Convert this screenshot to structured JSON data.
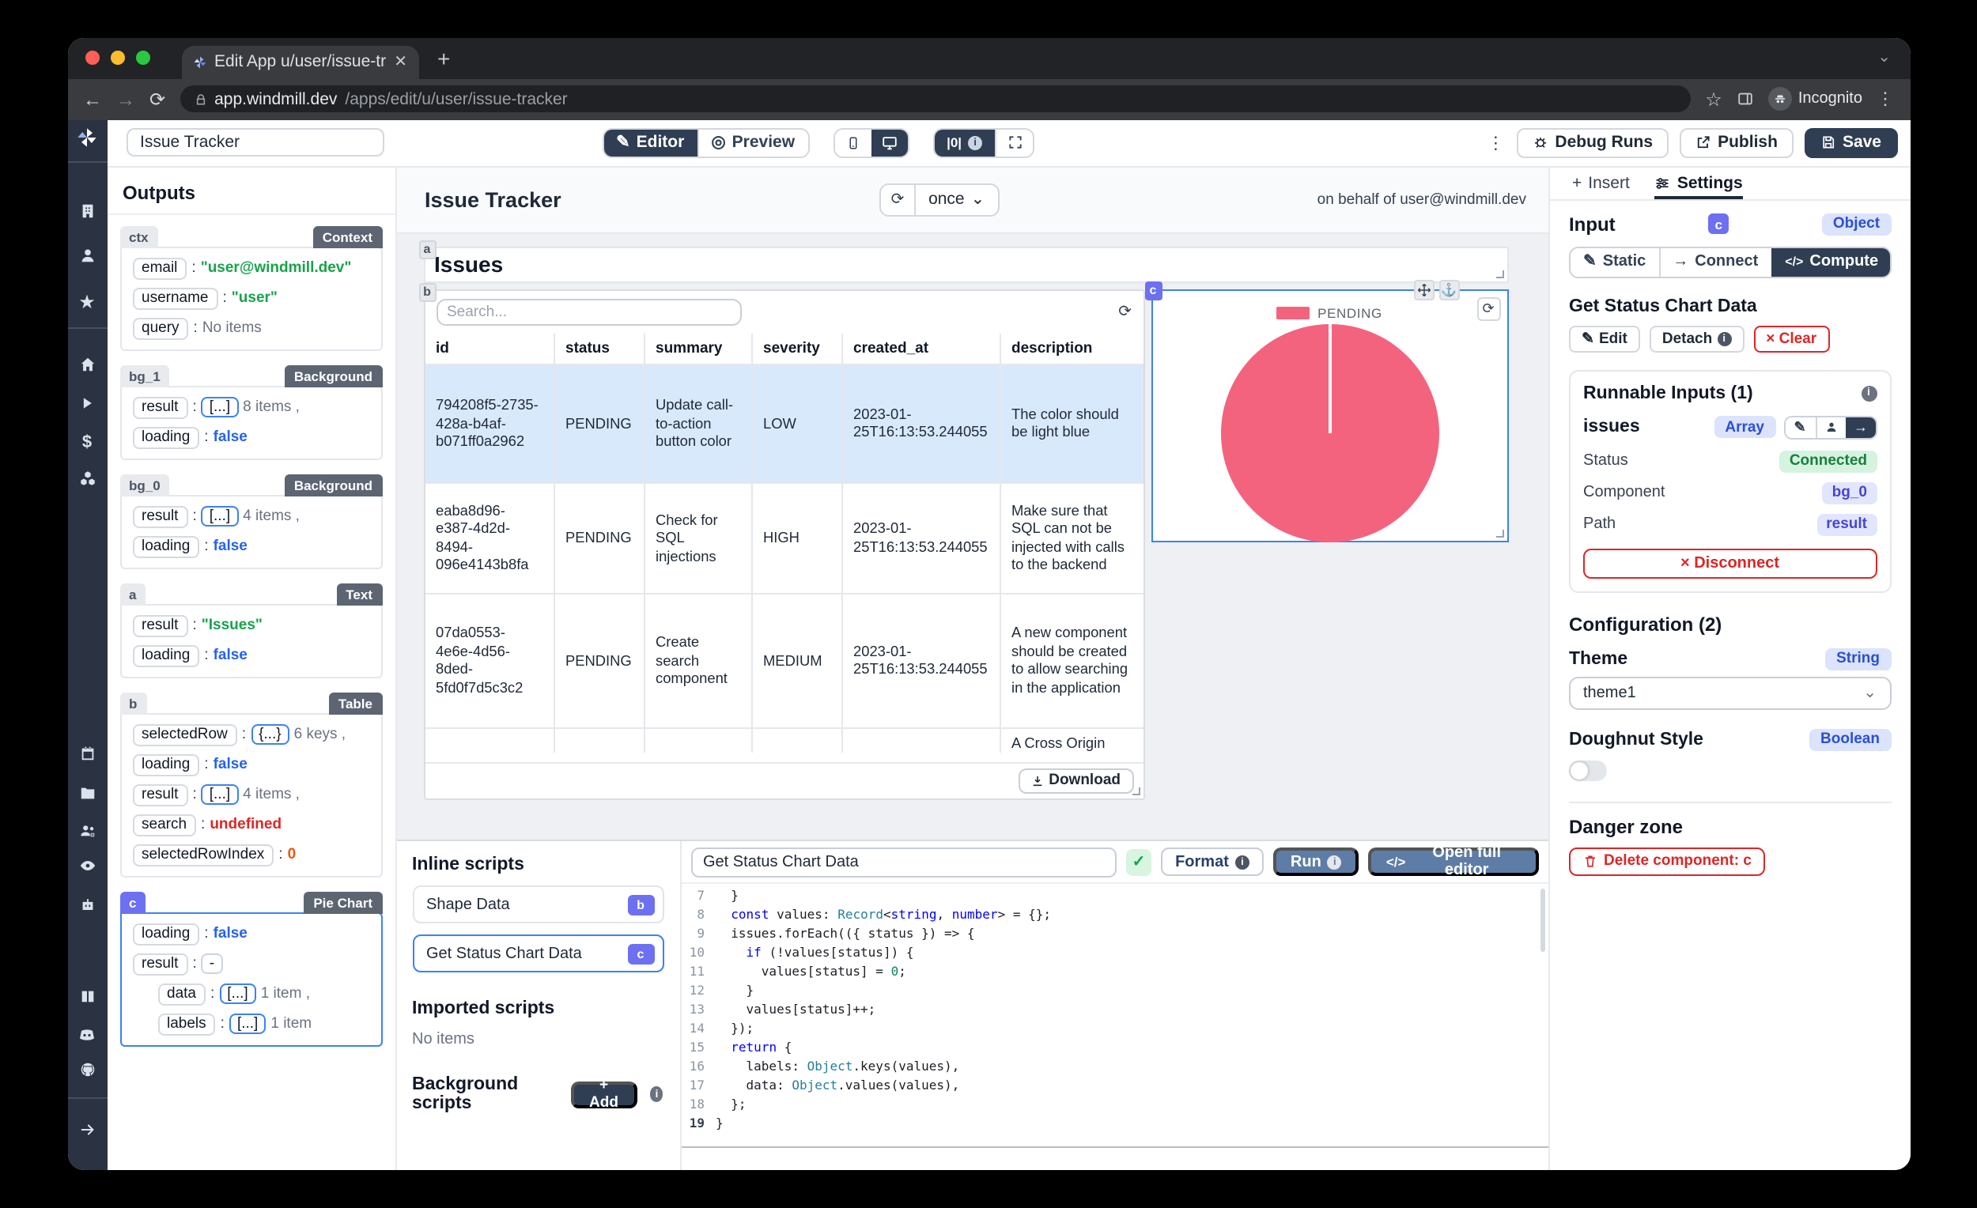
{
  "browser": {
    "tab_title": "Edit App u/user/issue-tracker |",
    "url_domain": "app.windmill.dev",
    "url_path": "/apps/edit/u/user/issue-tracker",
    "incognito_label": "Incognito"
  },
  "icons": {
    "back": "←",
    "forward": "→",
    "refresh": "⟳",
    "close": "✕",
    "plus": "+",
    "chevron_down": "⌄",
    "kebab": "⋮",
    "star": "☆",
    "check": "✓",
    "pencil": "✎",
    "preview": "◎",
    "anchor": "⚓",
    "arrow_right": "→",
    "code": "</>",
    "zero_badge": "|0|",
    "dash": "-",
    "colon": ":"
  },
  "toolbar": {
    "app_name_value": "Issue Tracker",
    "editor": "Editor",
    "preview": "Preview",
    "debug_runs": "Debug Runs",
    "publish": "Publish",
    "save": "Save"
  },
  "outputs": {
    "title": "Outputs",
    "cards": [
      {
        "id": "ctx",
        "type": "Context",
        "purple": false,
        "selected": false,
        "rows": [
          {
            "key": "email",
            "value": "\"user@windmill.dev\"",
            "cls": "str"
          },
          {
            "key": "username",
            "value": "\"user\"",
            "cls": "str"
          },
          {
            "key": "query",
            "value": "No items",
            "cls": "mut"
          }
        ]
      },
      {
        "id": "bg_1",
        "type": "Background",
        "purple": false,
        "selected": false,
        "rows": [
          {
            "key": "result",
            "chip": "[...]",
            "chipBlue": true,
            "value": "8 items ,",
            "cls": "mut"
          },
          {
            "key": "loading",
            "value": "false",
            "cls": "bool"
          }
        ]
      },
      {
        "id": "bg_0",
        "type": "Background",
        "purple": false,
        "selected": false,
        "rows": [
          {
            "key": "result",
            "chip": "[...]",
            "chipBlue": true,
            "value": "4 items ,",
            "cls": "mut"
          },
          {
            "key": "loading",
            "value": "false",
            "cls": "bool"
          }
        ]
      },
      {
        "id": "a",
        "type": "Text",
        "purple": false,
        "selected": false,
        "rows": [
          {
            "key": "result",
            "value": "\"Issues\"",
            "cls": "str"
          },
          {
            "key": "loading",
            "value": "false",
            "cls": "bool"
          }
        ]
      },
      {
        "id": "b",
        "type": "Table",
        "purple": false,
        "selected": false,
        "rows": [
          {
            "key": "selectedRow",
            "chip": "{...}",
            "chipBlue": true,
            "value": "6 keys ,",
            "cls": "mut"
          },
          {
            "key": "loading",
            "value": "false",
            "cls": "bool"
          },
          {
            "key": "result",
            "chip": "[...]",
            "chipBlue": true,
            "value": "4 items ,",
            "cls": "mut"
          },
          {
            "key": "search",
            "value": "undefined",
            "cls": "undef"
          },
          {
            "key": "selectedRowIndex",
            "value": "0",
            "cls": "num"
          }
        ]
      },
      {
        "id": "c",
        "type": "Pie Chart",
        "purple": true,
        "selected": true,
        "rows": [
          {
            "key": "loading",
            "value": "false",
            "cls": "bool"
          },
          {
            "key": "result",
            "chip": "-",
            "chipBlue": false,
            "value": "",
            "cls": "mut"
          },
          {
            "key": "data",
            "chip": "[...]",
            "chipBlue": true,
            "value": "1 item ,",
            "cls": "mut",
            "ind": true
          },
          {
            "key": "labels",
            "chip": "[...]",
            "chipBlue": true,
            "value": "1 item",
            "cls": "mut",
            "ind": true
          }
        ]
      }
    ]
  },
  "canvas": {
    "title": "Issue Tracker",
    "schedule": "once",
    "on_behalf": "on behalf of user@windmill.dev",
    "issues_heading": "Issues",
    "issues_badge": "a",
    "table_badge": "b",
    "pie_badge": "c",
    "table": {
      "search_placeholder": "Search...",
      "columns": [
        "id",
        "status",
        "summary",
        "severity",
        "created_at",
        "description"
      ],
      "rows": [
        {
          "selected": true,
          "cells": [
            "794208f5-2735-428a-b4af-b071ff0a2962",
            "PENDING",
            "Update call-to-action button color",
            "LOW",
            "2023-01-25T16:13:53.244055",
            "The color should be light blue"
          ]
        },
        {
          "selected": false,
          "cells": [
            "eaba8d96-e387-4d2d-8494-096e4143b8fa",
            "PENDING",
            "Check for SQL injections",
            "HIGH",
            "2023-01-25T16:13:53.244055",
            "Make sure that SQL can not be injected with calls to the backend"
          ]
        },
        {
          "selected": false,
          "cells": [
            "07da0553-4e6e-4d56-8ded-5fd0f7d5c3c2",
            "PENDING",
            "Create search component",
            "MEDIUM",
            "2023-01-25T16:13:53.244055",
            "A new component should be created to allow searching in the application"
          ]
        },
        {
          "selected": false,
          "partial": true,
          "cells": [
            "",
            "",
            "",
            "",
            "",
            "A Cross Origin"
          ]
        }
      ],
      "download": "Download"
    },
    "pie_legend": "PENDING",
    "pie_color": "#f4637e"
  },
  "chart_data": {
    "type": "pie",
    "labels": [
      "PENDING"
    ],
    "values": [
      4
    ],
    "colors": [
      "#f4637e"
    ],
    "legend_position": "top"
  },
  "scripts_panel": {
    "inline_title": "Inline scripts",
    "items": [
      {
        "label": "Shape Data",
        "badge": "b",
        "selected": false
      },
      {
        "label": "Get Status Chart Data",
        "badge": "c",
        "selected": true
      }
    ],
    "imported_title": "Imported scripts",
    "imported_empty": "No items",
    "background_title": "Background scripts",
    "add": "+ Add"
  },
  "editor_panel": {
    "name_value": "Get Status Chart Data",
    "format": "Format",
    "run": "Run",
    "open_full": "Open full editor",
    "code": [
      {
        "n": "7",
        "segs": [
          [
            "  }",
            "d"
          ]
        ]
      },
      {
        "n": "8",
        "segs": [
          [
            "  ",
            "d"
          ],
          [
            "const",
            "k"
          ],
          [
            " values: ",
            "d"
          ],
          [
            "Record",
            "t"
          ],
          [
            "<",
            "d"
          ],
          [
            "string",
            "k"
          ],
          [
            ", ",
            "d"
          ],
          [
            "number",
            "k"
          ],
          [
            "> = {};",
            "d"
          ]
        ]
      },
      {
        "n": "9",
        "segs": [
          [
            "  issues.forEach(({ status }) => {",
            "d"
          ]
        ]
      },
      {
        "n": "10",
        "segs": [
          [
            "    ",
            "d"
          ],
          [
            "if",
            "k"
          ],
          [
            " (!values[status]) {",
            "d"
          ]
        ]
      },
      {
        "n": "11",
        "segs": [
          [
            "      values[status] = ",
            "d"
          ],
          [
            "0",
            "n"
          ],
          [
            ";",
            "d"
          ]
        ]
      },
      {
        "n": "12",
        "segs": [
          [
            "    }",
            "d"
          ]
        ]
      },
      {
        "n": "13",
        "segs": [
          [
            "    values[status]++;",
            "d"
          ]
        ]
      },
      {
        "n": "14",
        "segs": [
          [
            "  });",
            "d"
          ]
        ]
      },
      {
        "n": "15",
        "segs": [
          [
            "  ",
            "d"
          ],
          [
            "return",
            "k"
          ],
          [
            " {",
            "d"
          ]
        ]
      },
      {
        "n": "16",
        "segs": [
          [
            "    labels: ",
            "d"
          ],
          [
            "Object",
            "t"
          ],
          [
            ".keys(values),",
            "d"
          ]
        ]
      },
      {
        "n": "17",
        "segs": [
          [
            "    data: ",
            "d"
          ],
          [
            "Object",
            "t"
          ],
          [
            ".values(values),",
            "d"
          ]
        ]
      },
      {
        "n": "18",
        "segs": [
          [
            "  };",
            "d"
          ]
        ]
      },
      {
        "n": "19",
        "segs": [
          [
            "}",
            "d"
          ]
        ]
      }
    ]
  },
  "settings": {
    "insert_tab": "Insert",
    "settings_tab": "Settings",
    "input_label": "Input",
    "component_badge": "c",
    "input_type": "Object",
    "static": "Static",
    "connect": "Connect",
    "compute": "Compute",
    "script_name": "Get Status Chart Data",
    "edit": "Edit",
    "detach": "Detach",
    "clear": "× Clear",
    "runnable": {
      "title": "Runnable Inputs (1)",
      "arg_name": "issues",
      "arg_type": "Array",
      "status_label": "Status",
      "status_value": "Connected",
      "component_label": "Component",
      "component_value": "bg_0",
      "path_label": "Path",
      "path_value": "result",
      "disconnect": "× Disconnect"
    },
    "configuration": {
      "title": "Configuration (2)",
      "theme_label": "Theme",
      "theme_type": "String",
      "theme_value": "theme1",
      "doughnut_label": "Doughnut Style",
      "doughnut_type": "Boolean"
    },
    "danger": {
      "title": "Danger zone",
      "delete": "Delete component: c"
    }
  }
}
